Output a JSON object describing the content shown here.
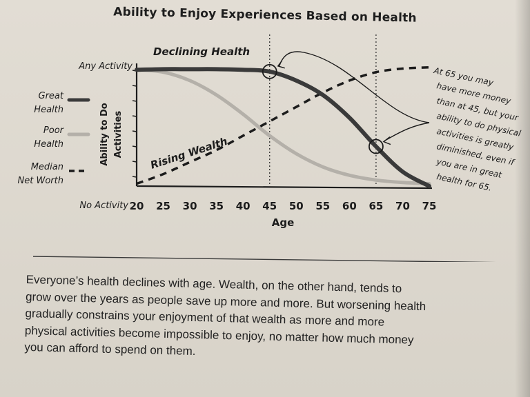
{
  "chart_data": {
    "type": "line",
    "title": "Ability to Enjoy Experiences Based on Health",
    "xlabel": "Age",
    "ylabel": "Ability to Do Activities",
    "x_ticks": [
      20,
      25,
      30,
      35,
      40,
      45,
      50,
      55,
      60,
      65,
      70,
      75
    ],
    "xlim": [
      20,
      75
    ],
    "y_top_label": "Any Activity",
    "y_bottom_label": "No Activity",
    "ylim": [
      0,
      1
    ],
    "series": [
      {
        "name": "Great Health",
        "style": "thick-dark",
        "color": "#3a3a3a",
        "points": [
          [
            20,
            0.97
          ],
          [
            25,
            0.975
          ],
          [
            30,
            0.975
          ],
          [
            35,
            0.975
          ],
          [
            40,
            0.97
          ],
          [
            45,
            0.955
          ],
          [
            50,
            0.88
          ],
          [
            55,
            0.76
          ],
          [
            60,
            0.57
          ],
          [
            65,
            0.33
          ],
          [
            70,
            0.12
          ],
          [
            75,
            0.0
          ]
        ]
      },
      {
        "name": "Poor Health",
        "style": "thick-light",
        "color": "#b4b0a9",
        "points": [
          [
            20,
            0.97
          ],
          [
            25,
            0.95
          ],
          [
            30,
            0.88
          ],
          [
            35,
            0.76
          ],
          [
            40,
            0.6
          ],
          [
            45,
            0.42
          ],
          [
            50,
            0.27
          ],
          [
            55,
            0.16
          ],
          [
            60,
            0.09
          ],
          [
            65,
            0.05
          ],
          [
            70,
            0.03
          ],
          [
            75,
            0.02
          ]
        ]
      },
      {
        "name": "Median Net Worth",
        "style": "dashed",
        "color": "#1c1c1c",
        "points": [
          [
            20,
            0.02
          ],
          [
            25,
            0.1
          ],
          [
            30,
            0.2
          ],
          [
            35,
            0.3
          ],
          [
            40,
            0.42
          ],
          [
            45,
            0.54
          ],
          [
            50,
            0.66
          ],
          [
            55,
            0.78
          ],
          [
            60,
            0.88
          ],
          [
            65,
            0.95
          ],
          [
            70,
            0.98
          ],
          [
            75,
            0.99
          ]
        ]
      }
    ],
    "markers": [
      {
        "series": "Great Health",
        "x": 45
      },
      {
        "series": "Great Health",
        "x": 65
      }
    ],
    "reference_lines_x": [
      45,
      65
    ],
    "annotations": {
      "declining_health": "Declining Health",
      "rising_wealth": "Rising Wealth",
      "note_lines": [
        "At 65 you may",
        "have more money",
        "than at 45, but your",
        "ability to do physical",
        "activities is greatly",
        "diminished, even if",
        "you are in great",
        "health for 65."
      ]
    },
    "legend": {
      "placement": "left",
      "entries": [
        {
          "lines": [
            "Great",
            "Health"
          ],
          "series": "Great Health"
        },
        {
          "lines": [
            "Poor",
            "Health"
          ],
          "series": "Poor Health"
        },
        {
          "lines": [
            "Median",
            "Net Worth"
          ],
          "series": "Median Net Worth"
        }
      ]
    },
    "grid": false
  },
  "caption": {
    "lines": [
      "Everyone’s health declines with age. Wealth, on the other hand, tends to",
      "grow over the years as people save up more and more. But worsening health",
      "gradually constrains your enjoyment of that wealth as more and more",
      "physical activities become impossible to enjoy, no matter how much money",
      "you can afford to spend on them."
    ]
  }
}
